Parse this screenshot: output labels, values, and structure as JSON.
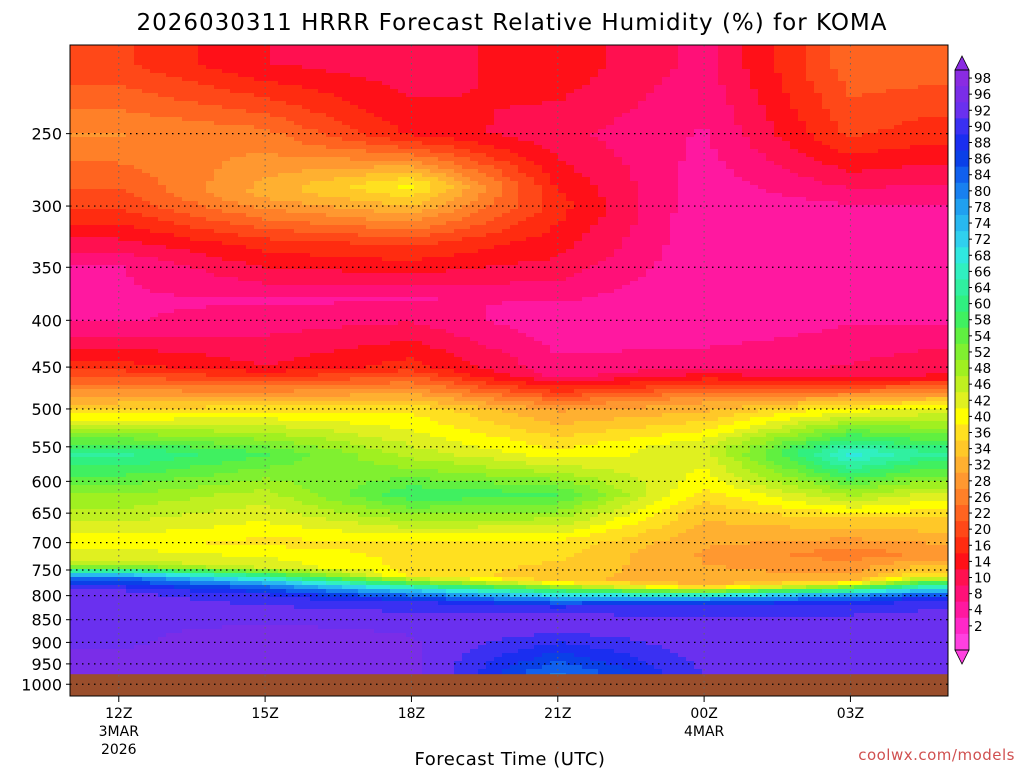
{
  "chart_data": {
    "type": "heatmap",
    "title": "2026030311 HRRR Forecast Relative Humidity (%) for KOMA",
    "xlabel": "Forecast Time (UTC)",
    "ylabel": "",
    "credit": "coolwx.com/models",
    "colors": {
      "ground": "#9a4e2c",
      "credit": "#d05050"
    },
    "x_ticks": [
      {
        "hour": 0,
        "label": "12Z",
        "sub1": "3MAR",
        "sub2": "2026"
      },
      {
        "hour": 3,
        "label": "15Z",
        "sub1": "",
        "sub2": ""
      },
      {
        "hour": 6,
        "label": "18Z",
        "sub1": "",
        "sub2": ""
      },
      {
        "hour": 9,
        "label": "21Z",
        "sub1": "",
        "sub2": ""
      },
      {
        "hour": 12,
        "label": "00Z",
        "sub1": "4MAR",
        "sub2": ""
      },
      {
        "hour": 15,
        "label": "03Z",
        "sub1": "",
        "sub2": ""
      }
    ],
    "x_range_hours": [
      -1,
      17
    ],
    "y_levels_hPa": [
      250,
      300,
      350,
      400,
      450,
      500,
      550,
      600,
      650,
      700,
      750,
      800,
      850,
      900,
      950,
      1000
    ],
    "y_range_hPa": [
      200,
      1030
    ],
    "y_scale": "log-pressure",
    "surface_pressure_hPa": 975,
    "grid": true,
    "colorbar": {
      "placement": "right",
      "labels": [
        "98",
        "96",
        "92",
        "90",
        "88",
        "86",
        "84",
        "80",
        "78",
        "74",
        "72",
        "68",
        "66",
        "64",
        "60",
        "58",
        "54",
        "52",
        "48",
        "46",
        "42",
        "40",
        "36",
        "34",
        "32",
        "28",
        "26",
        "22",
        "20",
        "16",
        "14",
        "10",
        "8",
        "4",
        "2"
      ],
      "colors": [
        "#8a2be2",
        "#7a2de8",
        "#6a30ef",
        "#3a30f2",
        "#1a2ef0",
        "#0a40e8",
        "#1060ee",
        "#1880f0",
        "#20a0f0",
        "#28b8f0",
        "#30d0ee",
        "#30e8e0",
        "#30f0c0",
        "#30f0a0",
        "#30f080",
        "#40f060",
        "#60f040",
        "#80f030",
        "#a0f020",
        "#c0f020",
        "#e0f020",
        "#ffff00",
        "#ffe020",
        "#ffc828",
        "#ffb030",
        "#ff9830",
        "#ff8028",
        "#ff6420",
        "#ff4818",
        "#ff2c10",
        "#ff1018",
        "#ff1050",
        "#ff1078",
        "#ff18a0",
        "#ff28c8",
        "#ff40e0"
      ]
    },
    "profile_times_hours": [
      0,
      3,
      6,
      9,
      12,
      15,
      16.5
    ],
    "profiles": [
      [
        [
          210,
          20
        ],
        [
          250,
          28
        ],
        [
          300,
          20
        ],
        [
          350,
          8
        ],
        [
          400,
          8
        ],
        [
          450,
          18
        ],
        [
          500,
          36
        ],
        [
          560,
          62
        ],
        [
          620,
          50
        ],
        [
          700,
          40
        ],
        [
          740,
          46
        ],
        [
          765,
          82
        ],
        [
          790,
          92
        ],
        [
          830,
          94
        ],
        [
          900,
          94
        ],
        [
          975,
          96
        ]
      ],
      [
        [
          210,
          14
        ],
        [
          250,
          26
        ],
        [
          290,
          32
        ],
        [
          330,
          18
        ],
        [
          380,
          8
        ],
        [
          450,
          14
        ],
        [
          500,
          38
        ],
        [
          560,
          56
        ],
        [
          620,
          46
        ],
        [
          700,
          38
        ],
        [
          745,
          44
        ],
        [
          780,
          80
        ],
        [
          800,
          90
        ],
        [
          850,
          94
        ],
        [
          900,
          96
        ],
        [
          975,
          96
        ]
      ],
      [
        [
          210,
          12
        ],
        [
          250,
          16
        ],
        [
          285,
          40
        ],
        [
          330,
          20
        ],
        [
          380,
          8
        ],
        [
          450,
          18
        ],
        [
          500,
          38
        ],
        [
          560,
          46
        ],
        [
          620,
          58
        ],
        [
          700,
          38
        ],
        [
          760,
          38
        ],
        [
          795,
          78
        ],
        [
          815,
          90
        ],
        [
          860,
          94
        ],
        [
          975,
          96
        ]
      ],
      [
        [
          210,
          16
        ],
        [
          250,
          12
        ],
        [
          300,
          18
        ],
        [
          340,
          14
        ],
        [
          400,
          6
        ],
        [
          460,
          10
        ],
        [
          500,
          30
        ],
        [
          560,
          40
        ],
        [
          620,
          56
        ],
        [
          700,
          38
        ],
        [
          770,
          34
        ],
        [
          805,
          76
        ],
        [
          825,
          90
        ],
        [
          860,
          94
        ],
        [
          970,
          80
        ]
      ],
      [
        [
          210,
          10
        ],
        [
          250,
          8
        ],
        [
          300,
          6
        ],
        [
          400,
          6
        ],
        [
          450,
          10
        ],
        [
          490,
          30
        ],
        [
          550,
          44
        ],
        [
          600,
          40
        ],
        [
          650,
          34
        ],
        [
          720,
          30
        ],
        [
          780,
          32
        ],
        [
          805,
          76
        ],
        [
          820,
          90
        ],
        [
          870,
          94
        ],
        [
          975,
          92
        ]
      ],
      [
        [
          210,
          24
        ],
        [
          250,
          20
        ],
        [
          300,
          8
        ],
        [
          400,
          8
        ],
        [
          460,
          12
        ],
        [
          500,
          40
        ],
        [
          560,
          68
        ],
        [
          620,
          48
        ],
        [
          660,
          36
        ],
        [
          720,
          26
        ],
        [
          770,
          32
        ],
        [
          800,
          78
        ],
        [
          820,
          90
        ],
        [
          870,
          94
        ],
        [
          975,
          94
        ]
      ],
      [
        [
          210,
          24
        ],
        [
          250,
          18
        ],
        [
          300,
          8
        ],
        [
          400,
          8
        ],
        [
          460,
          14
        ],
        [
          500,
          42
        ],
        [
          560,
          62
        ],
        [
          620,
          44
        ],
        [
          660,
          36
        ],
        [
          720,
          28
        ],
        [
          760,
          38
        ],
        [
          795,
          80
        ],
        [
          810,
          90
        ],
        [
          860,
          94
        ],
        [
          975,
          94
        ]
      ]
    ]
  }
}
